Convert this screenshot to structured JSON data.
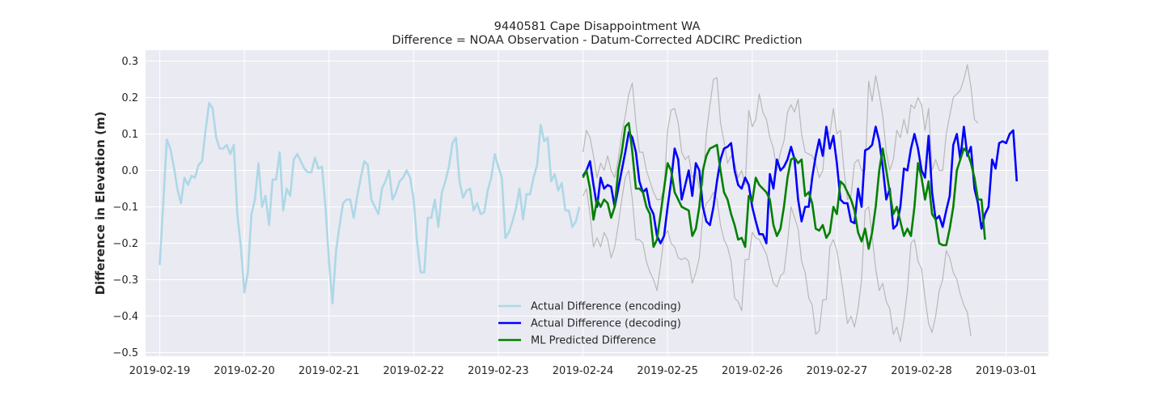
{
  "chart_data": {
    "type": "line",
    "title_line1": "9440581 Cape Disappointment WA",
    "title_line2": "Difference = NOAA Observation - Datum-Corrected ADCIRC Prediction",
    "xlabel": "",
    "ylabel": "Difference in Elevation (m)",
    "grid": true,
    "legend_position": "lower-center",
    "xlim": [
      "2019-02-18T20:00",
      "2019-03-01T12:00"
    ],
    "ylim": [
      -0.51,
      0.33
    ],
    "x_ticks": [
      "2019-02-19",
      "2019-02-20",
      "2019-02-21",
      "2019-02-22",
      "2019-02-23",
      "2019-02-24",
      "2019-02-25",
      "2019-02-26",
      "2019-02-27",
      "2019-02-28",
      "2019-03-01"
    ],
    "y_ticks": [
      0.3,
      0.2,
      0.1,
      0.0,
      -0.1,
      -0.2,
      -0.3,
      -0.4,
      -0.5
    ],
    "y_tick_labels": [
      "0.3",
      "0.2",
      "0.1",
      "0.0",
      "−0.1",
      "−0.2",
      "−0.3",
      "−0.4",
      "−0.5"
    ],
    "colors": {
      "encoding": "#add8e6",
      "decoding": "#0000ff",
      "predicted": "#008000",
      "bounds": "#b8b8b8",
      "plot_bg": "#eaeaf2",
      "grid": "#ffffff"
    },
    "series": [
      {
        "name": "Actual Difference (encoding)",
        "color": "#add8e6",
        "start": "2019-02-19T00:00",
        "step_hours": 1,
        "values": [
          -0.26,
          -0.09,
          0.085,
          0.06,
          0.01,
          -0.05,
          -0.09,
          -0.02,
          -0.04,
          -0.015,
          -0.02,
          0.015,
          0.025,
          0.11,
          0.185,
          0.17,
          0.09,
          0.06,
          0.06,
          0.07,
          0.045,
          0.07,
          -0.12,
          -0.21,
          -0.335,
          -0.28,
          -0.12,
          -0.08,
          0.02,
          -0.1,
          -0.07,
          -0.15,
          -0.025,
          -0.025,
          0.05,
          -0.11,
          -0.05,
          -0.07,
          0.03,
          0.045,
          0.025,
          0.005,
          -0.005,
          -0.005,
          0.035,
          0.005,
          0.01,
          -0.1,
          -0.25,
          -0.365,
          -0.22,
          -0.15,
          -0.09,
          -0.08,
          -0.08,
          -0.13,
          -0.07,
          -0.02,
          0.025,
          0.015,
          -0.08,
          -0.1,
          -0.12,
          -0.05,
          -0.03,
          0.0,
          -0.08,
          -0.06,
          -0.03,
          -0.02,
          0.0,
          -0.02,
          -0.08,
          -0.2,
          -0.28,
          -0.28,
          -0.13,
          -0.13,
          -0.08,
          -0.155,
          -0.06,
          -0.03,
          0.01,
          0.075,
          0.09,
          -0.03,
          -0.075,
          -0.055,
          -0.05,
          -0.11,
          -0.09,
          -0.12,
          -0.115,
          -0.055,
          -0.02,
          0.045,
          0.01,
          -0.02,
          -0.185,
          -0.17,
          -0.14,
          -0.105,
          -0.05,
          -0.135,
          -0.065,
          -0.065,
          -0.02,
          0.015,
          0.125,
          0.08,
          0.09,
          -0.03,
          -0.01,
          -0.055,
          -0.035,
          -0.11,
          -0.11,
          -0.155,
          -0.14,
          -0.1
        ]
      },
      {
        "name": "Actual Difference (decoding)",
        "color": "#0000ff",
        "start": "2019-02-24T00:00",
        "step_hours": 1,
        "values": [
          -0.015,
          0.0,
          0.025,
          -0.04,
          -0.1,
          -0.02,
          -0.05,
          -0.04,
          -0.045,
          -0.1,
          -0.05,
          0.0,
          0.05,
          0.105,
          0.09,
          0.05,
          -0.03,
          -0.06,
          -0.05,
          -0.1,
          -0.12,
          -0.18,
          -0.2,
          -0.18,
          -0.1,
          -0.03,
          0.06,
          0.03,
          -0.08,
          -0.04,
          0.0,
          -0.07,
          0.02,
          0.0,
          -0.1,
          -0.14,
          -0.15,
          -0.1,
          -0.03,
          0.03,
          0.06,
          0.065,
          0.075,
          0.0,
          -0.04,
          -0.05,
          -0.02,
          -0.04,
          -0.1,
          -0.14,
          -0.175,
          -0.175,
          -0.2,
          -0.01,
          -0.05,
          0.03,
          0.0,
          0.01,
          0.03,
          0.065,
          0.03,
          -0.08,
          -0.14,
          -0.1,
          -0.1,
          -0.02,
          0.04,
          0.085,
          0.04,
          0.12,
          0.06,
          0.095,
          0.02,
          -0.08,
          -0.09,
          -0.09,
          -0.14,
          -0.145,
          -0.05,
          -0.1,
          0.055,
          0.06,
          0.07,
          0.12,
          0.08,
          0.01,
          -0.08,
          -0.05,
          -0.16,
          -0.15,
          -0.1,
          0.005,
          0.0,
          0.06,
          0.1,
          0.06,
          0.0,
          -0.02,
          0.095,
          -0.06,
          -0.135,
          -0.125,
          -0.155,
          -0.11,
          -0.07,
          0.07,
          0.1,
          0.03,
          0.12,
          0.04,
          0.065,
          -0.05,
          -0.09,
          -0.16,
          -0.12,
          -0.1,
          0.03,
          0.005,
          0.075,
          0.08,
          0.075,
          0.1,
          0.11,
          -0.03
        ]
      },
      {
        "name": "ML Predicted Difference",
        "color": "#008000",
        "start": "2019-02-24T00:00",
        "step_hours": 1,
        "values": [
          -0.02,
          0.0,
          -0.05,
          -0.135,
          -0.08,
          -0.1,
          -0.08,
          -0.09,
          -0.13,
          -0.1,
          0.0,
          0.05,
          0.12,
          0.13,
          0.05,
          -0.05,
          -0.05,
          -0.06,
          -0.1,
          -0.12,
          -0.21,
          -0.19,
          -0.12,
          -0.05,
          0.02,
          0.0,
          -0.06,
          -0.08,
          -0.1,
          -0.105,
          -0.11,
          -0.18,
          -0.16,
          -0.1,
          0.0,
          0.04,
          0.06,
          0.065,
          0.07,
          0.0,
          -0.06,
          -0.08,
          -0.12,
          -0.15,
          -0.19,
          -0.185,
          -0.21,
          -0.07,
          -0.085,
          -0.02,
          -0.04,
          -0.05,
          -0.06,
          -0.08,
          -0.15,
          -0.18,
          -0.16,
          -0.1,
          -0.02,
          0.03,
          0.035,
          0.02,
          0.03,
          -0.07,
          -0.06,
          -0.09,
          -0.16,
          -0.165,
          -0.15,
          -0.185,
          -0.17,
          -0.1,
          -0.12,
          -0.03,
          -0.04,
          -0.06,
          -0.08,
          -0.11,
          -0.17,
          -0.195,
          -0.16,
          -0.215,
          -0.17,
          -0.1,
          0.0,
          0.06,
          0.0,
          -0.06,
          -0.12,
          -0.1,
          -0.14,
          -0.18,
          -0.16,
          -0.18,
          -0.1,
          0.02,
          -0.02,
          -0.08,
          -0.03,
          -0.12,
          -0.135,
          -0.2,
          -0.205,
          -0.205,
          -0.16,
          -0.1,
          0.0,
          0.03,
          0.06,
          0.05,
          0.02,
          -0.02,
          -0.08,
          -0.08,
          -0.19
        ]
      },
      {
        "name": "",
        "color": "#b8b8b8",
        "start": "2019-02-24T00:00",
        "step_hours": 1,
        "values": [
          0.05,
          0.11,
          0.09,
          0.04,
          -0.02,
          0.02,
          0.0,
          0.04,
          0.0,
          -0.02,
          0.03,
          0.1,
          0.15,
          0.21,
          0.24,
          0.13,
          0.05,
          0.05,
          0.0,
          -0.03,
          -0.06,
          -0.08,
          -0.08,
          -0.05,
          0.11,
          0.165,
          0.17,
          0.13,
          0.05,
          0.03,
          0.04,
          -0.02,
          0.0,
          -0.05,
          -0.04,
          0.1,
          0.18,
          0.25,
          0.255,
          0.13,
          0.08,
          0.02,
          0.04,
          0.02,
          -0.02,
          0.0,
          -0.04,
          0.165,
          0.12,
          0.14,
          0.21,
          0.16,
          0.14,
          0.09,
          0.06,
          0.0,
          0.05,
          0.08,
          0.16,
          0.18,
          0.16,
          0.195,
          0.1,
          0.05,
          0.045,
          0.04,
          0.02,
          -0.02,
          0.0,
          0.11,
          0.1,
          0.17,
          0.1,
          0.11,
          0.0,
          -0.08,
          -0.07,
          0.02,
          0.03,
          0.0,
          0.0,
          0.245,
          0.19,
          0.26,
          0.21,
          0.15,
          0.05,
          0.0,
          0.03,
          0.11,
          0.09,
          0.14,
          0.1,
          0.18,
          0.17,
          0.2,
          0.18,
          0.11,
          0.17,
          0.0,
          0.03,
          0.0,
          0.0,
          0.1,
          0.15,
          0.2,
          0.21,
          0.22,
          0.25,
          0.29,
          0.23,
          0.14,
          0.13
        ]
      },
      {
        "name": "",
        "color": "#b8b8b8",
        "start": "2019-02-24T00:00",
        "step_hours": 1,
        "values": [
          -0.07,
          -0.05,
          -0.12,
          -0.21,
          -0.185,
          -0.21,
          -0.17,
          -0.19,
          -0.24,
          -0.21,
          -0.15,
          -0.08,
          -0.02,
          0.0,
          -0.08,
          -0.19,
          -0.19,
          -0.2,
          -0.25,
          -0.28,
          -0.3,
          -0.33,
          -0.26,
          -0.18,
          -0.165,
          -0.2,
          -0.21,
          -0.24,
          -0.245,
          -0.24,
          -0.25,
          -0.31,
          -0.28,
          -0.24,
          -0.12,
          -0.09,
          -0.08,
          -0.06,
          -0.08,
          -0.15,
          -0.19,
          -0.21,
          -0.25,
          -0.35,
          -0.36,
          -0.385,
          -0.245,
          -0.245,
          -0.17,
          -0.185,
          -0.19,
          -0.21,
          -0.23,
          -0.27,
          -0.31,
          -0.32,
          -0.29,
          -0.28,
          -0.2,
          -0.1,
          -0.13,
          -0.16,
          -0.25,
          -0.28,
          -0.35,
          -0.37,
          -0.45,
          -0.44,
          -0.355,
          -0.355,
          -0.21,
          -0.19,
          -0.22,
          -0.28,
          -0.35,
          -0.42,
          -0.4,
          -0.43,
          -0.38,
          -0.3,
          -0.11,
          -0.1,
          -0.18,
          -0.27,
          -0.33,
          -0.31,
          -0.36,
          -0.38,
          -0.45,
          -0.43,
          -0.47,
          -0.41,
          -0.33,
          -0.2,
          -0.19,
          -0.25,
          -0.27,
          -0.35,
          -0.42,
          -0.445,
          -0.4,
          -0.33,
          -0.3,
          -0.22,
          -0.24,
          -0.28,
          -0.3,
          -0.34,
          -0.37,
          -0.39,
          -0.455
        ]
      }
    ],
    "legend": [
      {
        "label": "Actual Difference (encoding)",
        "color": "#add8e6"
      },
      {
        "label": "Actual Difference (decoding)",
        "color": "#0000ff"
      },
      {
        "label": "ML Predicted Difference",
        "color": "#008000"
      }
    ]
  }
}
